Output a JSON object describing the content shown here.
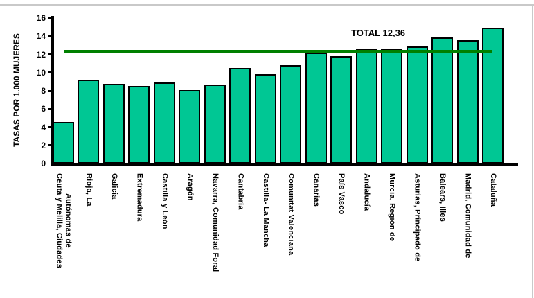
{
  "chart_data": {
    "type": "bar",
    "title": "",
    "xlabel": "",
    "ylabel": "TASAS POR 1.000 MUJERES",
    "ylim": [
      0,
      16
    ],
    "yticks": [
      0,
      2,
      4,
      6,
      8,
      10,
      12,
      14,
      16
    ],
    "grid": false,
    "legend": "none",
    "categories": [
      "Ceuta y Melilla, Ciudades\nAutónomas de",
      "Rioja, La",
      "Galicia",
      "Extremadura",
      "Castilla y León",
      "Aragón",
      "Navarra, Comunidad Foral",
      "Cantabria",
      "Castilla- La Mancha",
      "Comunitat Valenciana",
      "Canarias",
      "País Vasco",
      "Andalucía",
      "Murcia, Región de",
      "Asturias, Principado de",
      "Balears, Illes",
      "Madrid, Comunidad de",
      "Cataluña"
    ],
    "values": [
      4.6,
      9.2,
      8.8,
      8.5,
      8.9,
      8.1,
      8.7,
      10.5,
      9.8,
      10.8,
      12.2,
      11.8,
      12.6,
      12.6,
      12.9,
      13.9,
      13.6,
      14.9
    ],
    "reference_line": {
      "label": "TOTAL 12,36",
      "value": 12.36,
      "color": "#008000"
    },
    "bar_color": "#00C794",
    "bar_border_color": "#000000",
    "axis_color": "#000000",
    "text_color": "#000000"
  }
}
